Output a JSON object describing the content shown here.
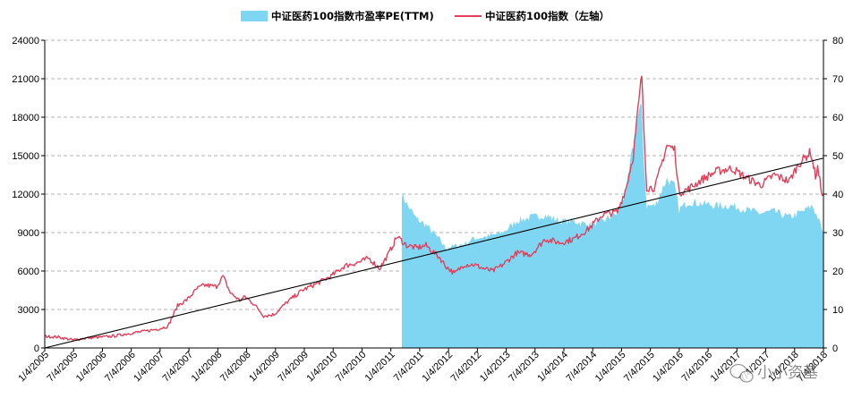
{
  "chart_data": {
    "type": "line",
    "legend": [
      {
        "label": "中证医药100指数市盈率PE(TTM)",
        "kind": "area",
        "color": "#7fd6f3"
      },
      {
        "label": "中证医药100指数（左轴）",
        "kind": "line",
        "color": "#e0405a"
      }
    ],
    "legend_position": "top",
    "grid": "horizontal-dashed",
    "y_left": {
      "min": 0,
      "max": 24000,
      "ticks": [
        "0",
        "3000",
        "6000",
        "9000",
        "12000",
        "15000",
        "18000",
        "21000",
        "24000"
      ]
    },
    "y_right": {
      "min": 0,
      "max": 80,
      "ticks": [
        "0",
        "10",
        "20",
        "30",
        "40",
        "50",
        "60",
        "70",
        "80"
      ]
    },
    "x_ticks": [
      "1/4/2005",
      "7/4/2005",
      "1/4/2006",
      "7/4/2006",
      "1/4/2007",
      "7/4/2007",
      "1/4/2008",
      "7/4/2008",
      "1/4/2009",
      "7/4/2009",
      "1/4/2010",
      "7/4/2010",
      "1/4/2011",
      "7/4/2011",
      "1/4/2012",
      "7/4/2012",
      "1/4/2013",
      "7/4/2013",
      "1/4/2014",
      "7/4/2014",
      "1/4/2015",
      "7/4/2015",
      "1/4/2016",
      "7/4/2016",
      "1/4/2017",
      "7/4/2017",
      "1/4/2018",
      "7/4/2018"
    ],
    "index_series": {
      "name": "中证医药100指数（左轴）",
      "axis": "left",
      "points": [
        [
          "2005-01-04",
          900
        ],
        [
          "2005-04-01",
          850
        ],
        [
          "2005-07-04",
          620
        ],
        [
          "2005-10-01",
          780
        ],
        [
          "2006-01-04",
          850
        ],
        [
          "2006-04-01",
          950
        ],
        [
          "2006-07-04",
          1150
        ],
        [
          "2006-10-01",
          1300
        ],
        [
          "2007-01-04",
          1500
        ],
        [
          "2007-03-01",
          1700
        ],
        [
          "2007-05-01",
          3300
        ],
        [
          "2007-07-04",
          3800
        ],
        [
          "2007-09-01",
          4600
        ],
        [
          "2007-10-15",
          4900
        ],
        [
          "2008-01-04",
          4800
        ],
        [
          "2008-02-15",
          5600
        ],
        [
          "2008-04-01",
          4300
        ],
        [
          "2008-06-01",
          3700
        ],
        [
          "2008-07-04",
          4000
        ],
        [
          "2008-09-01",
          3400
        ],
        [
          "2008-11-01",
          2500
        ],
        [
          "2009-01-04",
          2600
        ],
        [
          "2009-04-01",
          3600
        ],
        [
          "2009-07-04",
          4500
        ],
        [
          "2009-10-01",
          5000
        ],
        [
          "2010-01-04",
          5600
        ],
        [
          "2010-04-01",
          6400
        ],
        [
          "2010-07-04",
          6700
        ],
        [
          "2010-09-01",
          7000
        ],
        [
          "2010-11-10",
          6200
        ],
        [
          "2011-01-04",
          7300
        ],
        [
          "2011-03-01",
          8700
        ],
        [
          "2011-05-01",
          8000
        ],
        [
          "2011-07-04",
          7800
        ],
        [
          "2011-09-01",
          8000
        ],
        [
          "2011-12-01",
          7000
        ],
        [
          "2012-01-04",
          6400
        ],
        [
          "2012-03-01",
          5800
        ],
        [
          "2012-05-01",
          6500
        ],
        [
          "2012-07-04",
          6500
        ],
        [
          "2012-09-01",
          6200
        ],
        [
          "2012-11-01",
          6000
        ],
        [
          "2013-01-04",
          6500
        ],
        [
          "2013-04-01",
          7400
        ],
        [
          "2013-07-04",
          7300
        ],
        [
          "2013-10-01",
          8500
        ],
        [
          "2014-01-04",
          8200
        ],
        [
          "2014-04-01",
          8500
        ],
        [
          "2014-07-04",
          9300
        ],
        [
          "2014-10-01",
          10400
        ],
        [
          "2015-01-04",
          10600
        ],
        [
          "2015-03-01",
          12500
        ],
        [
          "2015-04-15",
          15000
        ],
        [
          "2015-05-15",
          18500
        ],
        [
          "2015-06-08",
          21300
        ],
        [
          "2015-06-20",
          17500
        ],
        [
          "2015-07-10",
          12500
        ],
        [
          "2015-09-01",
          12500
        ],
        [
          "2015-11-15",
          15800
        ],
        [
          "2016-01-04",
          15500
        ],
        [
          "2016-02-01",
          12100
        ],
        [
          "2016-04-01",
          12400
        ],
        [
          "2016-07-04",
          13200
        ],
        [
          "2016-10-01",
          13800
        ],
        [
          "2017-01-04",
          14000
        ],
        [
          "2017-04-01",
          13300
        ],
        [
          "2017-07-04",
          12700
        ],
        [
          "2017-10-01",
          13500
        ],
        [
          "2018-01-04",
          13000
        ],
        [
          "2018-03-01",
          14300
        ],
        [
          "2018-05-20",
          15300
        ],
        [
          "2018-06-20",
          13400
        ],
        [
          "2018-07-04",
          14000
        ],
        [
          "2018-07-25",
          12500
        ],
        [
          "2018-08-08",
          11900
        ]
      ]
    },
    "pe_series": {
      "name": "中证医药100指数市盈率PE(TTM)",
      "axis": "right",
      "points": [
        [
          "2011-03-31",
          40
        ],
        [
          "2011-05-01",
          37.5
        ],
        [
          "2011-07-04",
          33.5
        ],
        [
          "2011-09-01",
          32
        ],
        [
          "2011-12-01",
          28
        ],
        [
          "2012-01-04",
          26
        ],
        [
          "2012-05-01",
          27
        ],
        [
          "2012-07-04",
          28.5
        ],
        [
          "2012-10-01",
          29
        ],
        [
          "2013-01-04",
          30
        ],
        [
          "2013-04-01",
          33
        ],
        [
          "2013-07-04",
          34
        ],
        [
          "2013-10-01",
          34.5
        ],
        [
          "2014-01-04",
          33
        ],
        [
          "2014-04-01",
          33
        ],
        [
          "2014-07-04",
          32
        ],
        [
          "2014-10-01",
          33
        ],
        [
          "2015-01-04",
          35
        ],
        [
          "2015-03-01",
          41
        ],
        [
          "2015-04-15",
          53
        ],
        [
          "2015-05-15",
          60
        ],
        [
          "2015-06-08",
          63
        ],
        [
          "2015-06-20",
          50
        ],
        [
          "2015-07-10",
          37
        ],
        [
          "2015-09-01",
          37
        ],
        [
          "2015-11-15",
          44
        ],
        [
          "2016-01-04",
          42
        ],
        [
          "2016-02-01",
          36
        ],
        [
          "2016-04-01",
          38
        ],
        [
          "2016-07-04",
          37.5
        ],
        [
          "2016-10-01",
          37
        ],
        [
          "2017-01-04",
          37
        ],
        [
          "2017-04-01",
          36
        ],
        [
          "2017-07-04",
          35
        ],
        [
          "2017-10-01",
          35.5
        ],
        [
          "2018-01-04",
          34
        ],
        [
          "2018-04-01",
          35.5
        ],
        [
          "2018-06-01",
          37
        ],
        [
          "2018-07-04",
          34
        ],
        [
          "2018-08-08",
          30
        ]
      ]
    },
    "trend_line": {
      "start": [
        "2005-01-04",
        0
      ],
      "end": [
        "2018-08-08",
        14800
      ],
      "color": "#000000"
    }
  },
  "watermark": {
    "text": "小小资基"
  }
}
